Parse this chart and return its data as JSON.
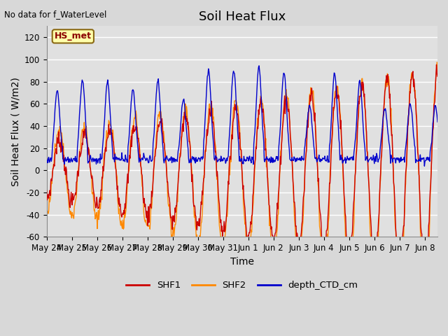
{
  "title": "Soil Heat Flux",
  "xlabel": "Time",
  "ylabel": "Soil Heat Flux ( W/m2)",
  "ylim": [
    -60,
    130
  ],
  "yticks": [
    -60,
    -40,
    -20,
    0,
    20,
    40,
    60,
    80,
    100,
    120
  ],
  "annotation_text": "No data for f_WaterLevel",
  "hs_met_label": "HS_met",
  "legend_entries": [
    "SHF1",
    "SHF2",
    "depth_CTD_cm"
  ],
  "shf1_color": "#cc0000",
  "shf2_color": "#ff8800",
  "ctd_color": "#0000cc",
  "fig_bg_color": "#d8d8d8",
  "plot_bg_color": "#e0e0e0",
  "grid_color": "#ffffff",
  "title_fontsize": 13,
  "label_fontsize": 10,
  "tick_fontsize": 8.5,
  "n_points": 750
}
